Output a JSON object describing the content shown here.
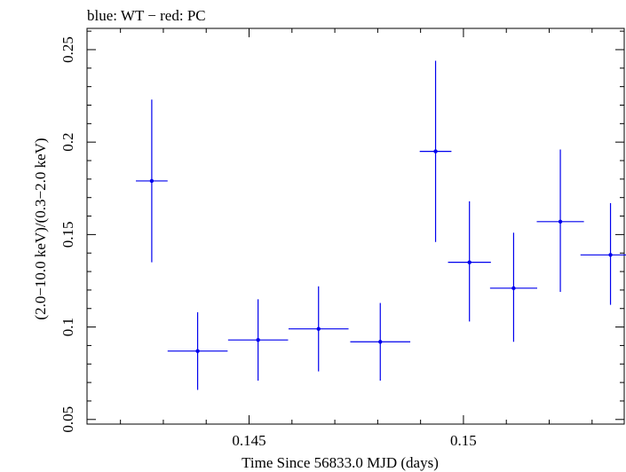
{
  "chart_data": {
    "type": "scatter",
    "title": "blue: WT − red: PC",
    "xlabel": "Time Since 56833.0 MJD (days)",
    "ylabel": "(2.0−10.0 keV)/(0.3−2.0 keV)",
    "xlim": [
      0.14122,
      0.15375
    ],
    "ylim": [
      0.0475,
      0.2615
    ],
    "x_ticks": [
      0.145,
      0.15
    ],
    "x_tick_labels": [
      "0.145",
      "0.15"
    ],
    "y_ticks": [
      0.05,
      0.1,
      0.15,
      0.2,
      0.25
    ],
    "y_tick_labels": [
      "0.05",
      "0.1",
      "0.15",
      "0.2",
      "0.25"
    ],
    "grid": false,
    "colors": {
      "WT": "#0000ee",
      "axis": "#000000"
    },
    "series": [
      {
        "name": "WT",
        "points": [
          {
            "x": 0.14273,
            "xerr": 0.00037,
            "y": 0.179,
            "ylo": 0.135,
            "yhi": 0.223
          },
          {
            "x": 0.1438,
            "xerr": 0.0007,
            "y": 0.087,
            "ylo": 0.066,
            "yhi": 0.108
          },
          {
            "x": 0.14521,
            "xerr": 0.0007,
            "y": 0.093,
            "ylo": 0.071,
            "yhi": 0.115
          },
          {
            "x": 0.14662,
            "xerr": 0.0007,
            "y": 0.099,
            "ylo": 0.076,
            "yhi": 0.122
          },
          {
            "x": 0.14806,
            "xerr": 0.0007,
            "y": 0.092,
            "ylo": 0.071,
            "yhi": 0.113
          },
          {
            "x": 0.14935,
            "xerr": 0.00037,
            "y": 0.195,
            "ylo": 0.146,
            "yhi": 0.244
          },
          {
            "x": 0.15014,
            "xerr": 0.0005,
            "y": 0.135,
            "ylo": 0.103,
            "yhi": 0.168
          },
          {
            "x": 0.15117,
            "xerr": 0.00055,
            "y": 0.121,
            "ylo": 0.092,
            "yhi": 0.151
          },
          {
            "x": 0.15226,
            "xerr": 0.00055,
            "y": 0.157,
            "ylo": 0.119,
            "yhi": 0.196
          },
          {
            "x": 0.15343,
            "xerr": 0.0007,
            "y": 0.139,
            "ylo": 0.112,
            "yhi": 0.167
          }
        ]
      }
    ]
  }
}
